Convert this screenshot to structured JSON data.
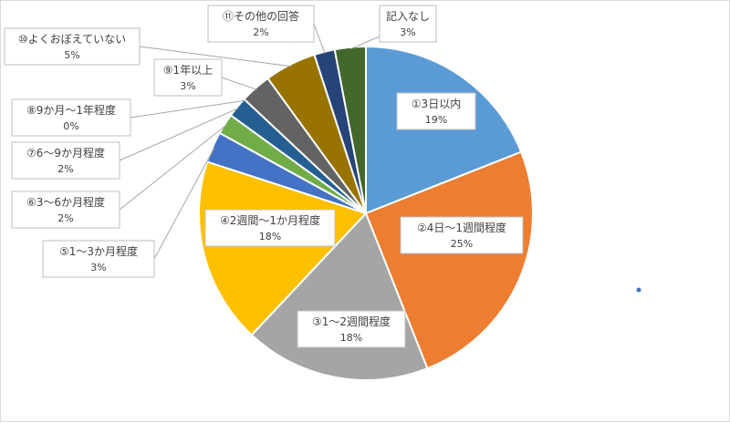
{
  "chart_data": {
    "type": "pie",
    "title": "",
    "start_angle_deg": 0,
    "direction": "clockwise",
    "legend": "none",
    "data_labels": "category-and-percent-callouts",
    "slices": [
      {
        "label": "①3日以内",
        "value_label": "19%",
        "value": 19,
        "color": "#5b9bd5"
      },
      {
        "label": "②4日～1週間程度",
        "value_label": "25%",
        "value": 25,
        "color": "#ed7d31"
      },
      {
        "label": "③1～2週間程度",
        "value_label": "18%",
        "value": 18,
        "color": "#a5a5a5"
      },
      {
        "label": "④2週間～1か月程度",
        "value_label": "18%",
        "value": 18,
        "color": "#ffc000"
      },
      {
        "label": "⑤1～3か月程度",
        "value_label": "3%",
        "value": 3,
        "color": "#4472c4"
      },
      {
        "label": "⑥3～6か月程度",
        "value_label": "2%",
        "value": 2,
        "color": "#70ad47"
      },
      {
        "label": "⑦6～9か月程度",
        "value_label": "2%",
        "value": 2,
        "color": "#255e91"
      },
      {
        "label": "⑧9か月～1年程度",
        "value_label": "0%",
        "value": 0,
        "color": "#9e480e"
      },
      {
        "label": "⑨1年以上",
        "value_label": "3%",
        "value": 3,
        "color": "#636363"
      },
      {
        "label": "⑩よくおぼえていない",
        "value_label": "5%",
        "value": 5,
        "color": "#997300"
      },
      {
        "label": "⑪その他の回答",
        "value_label": "2%",
        "value": 2,
        "color": "#264478"
      },
      {
        "label": "記入なし",
        "value_label": "3%",
        "value": 3,
        "color": "#43682b"
      }
    ]
  }
}
